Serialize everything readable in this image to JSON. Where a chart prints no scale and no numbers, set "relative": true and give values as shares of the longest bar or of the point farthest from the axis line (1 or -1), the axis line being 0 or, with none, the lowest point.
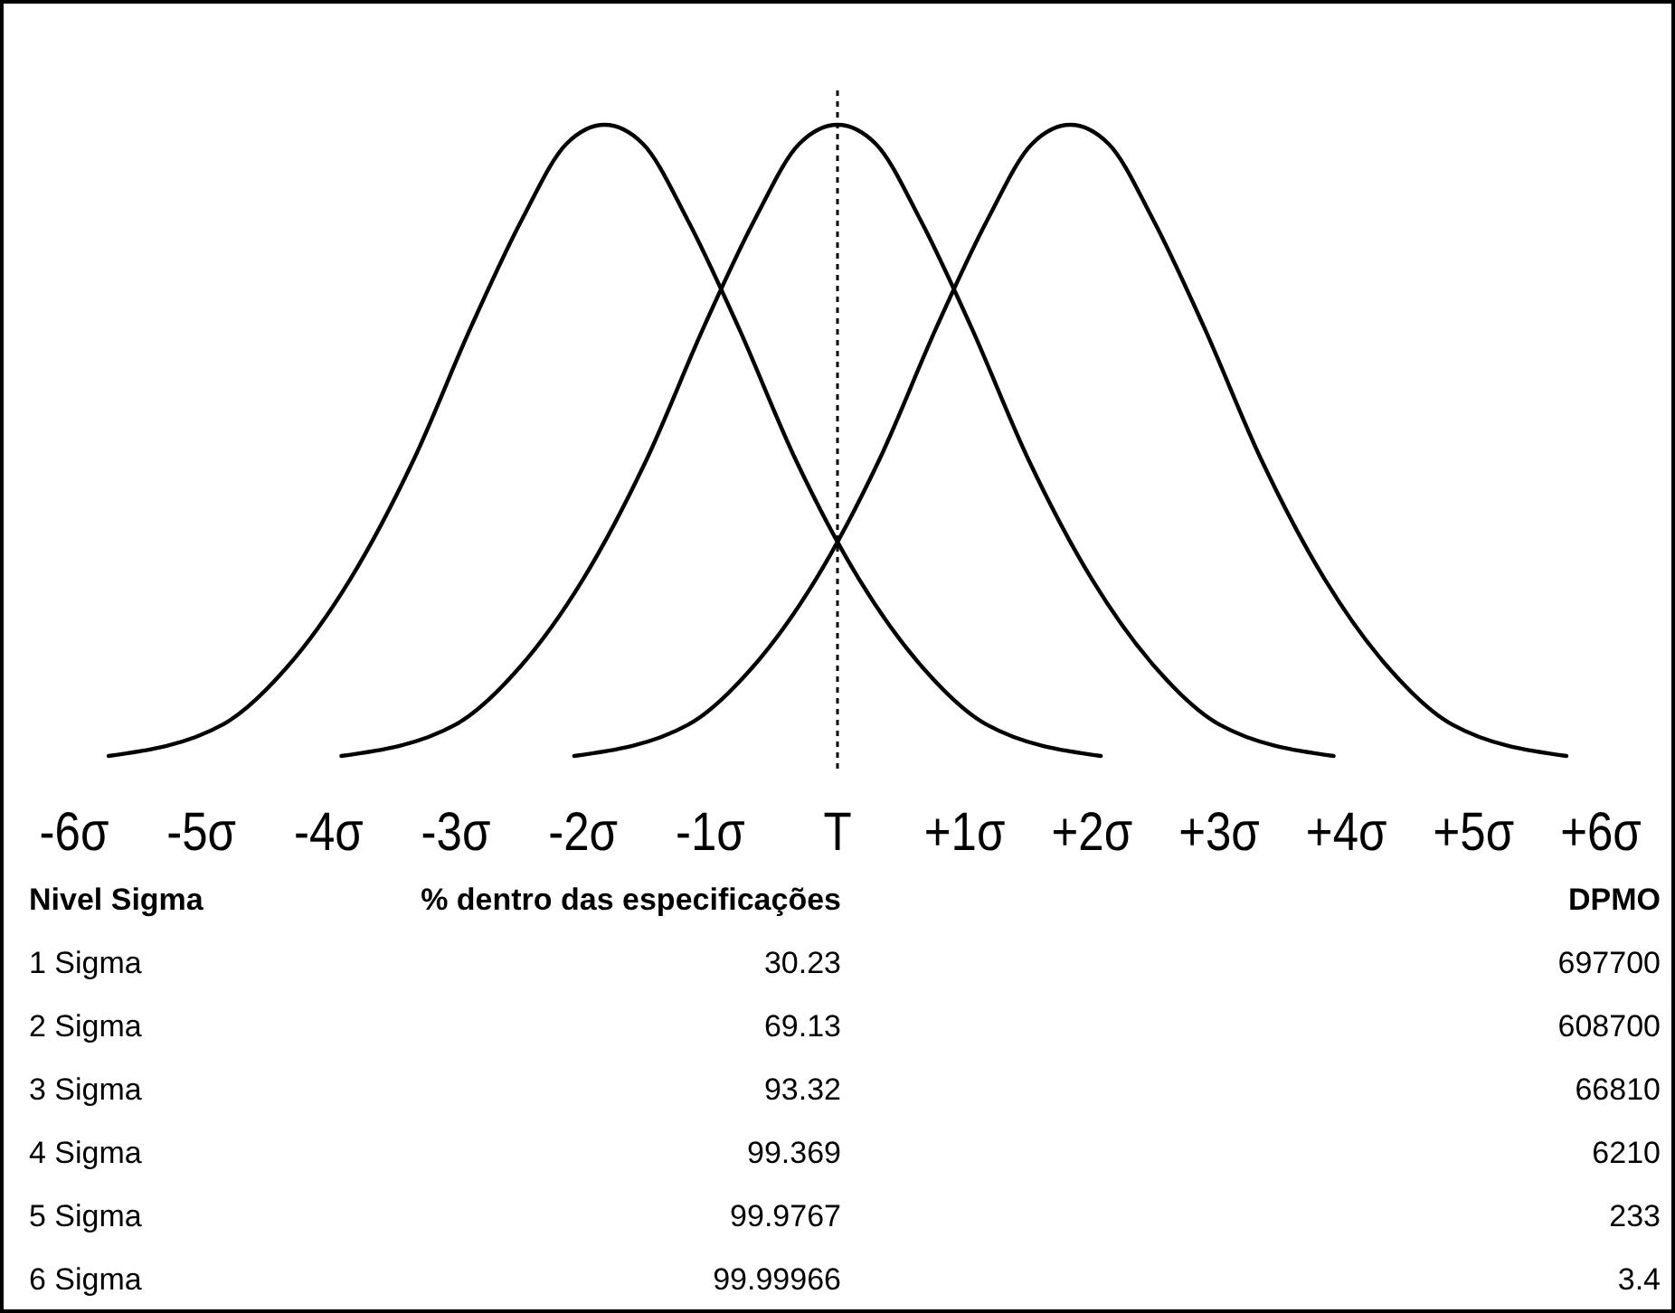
{
  "chart_data": {
    "type": "line",
    "relative": true,
    "marker": "none",
    "line_style": "solid",
    "xlim": [
      -6,
      6
    ],
    "xticks": [
      {
        "value": -6,
        "label": "-6σ"
      },
      {
        "value": -5,
        "label": "-5σ"
      },
      {
        "value": -4,
        "label": "-4σ"
      },
      {
        "value": -3,
        "label": "-3σ"
      },
      {
        "value": -2,
        "label": "-2σ"
      },
      {
        "value": -1,
        "label": "-1σ"
      },
      {
        "value": 0,
        "label": "T"
      },
      {
        "value": 1,
        "label": "+1σ"
      },
      {
        "value": 2,
        "label": "+2σ"
      },
      {
        "value": 3,
        "label": "+3σ"
      },
      {
        "value": 4,
        "label": "+4σ"
      },
      {
        "value": 5,
        "label": "+5σ"
      },
      {
        "value": 6,
        "label": "+6σ"
      }
    ],
    "series": [
      {
        "color": "#000000",
        "x": [
          -5.73,
          -4.83,
          -4.33,
          -3.83,
          -3.33,
          -2.88,
          -2.48,
          -2.13,
          -1.83,
          -1.53,
          -1.18,
          -0.78,
          -0.33,
          0.17,
          0.67,
          1.17,
          2.07
        ],
        "values": [
          0,
          0.05,
          0.14,
          0.28,
          0.47,
          0.68,
          0.85,
          0.97,
          1,
          0.97,
          0.85,
          0.68,
          0.47,
          0.28,
          0.14,
          0.05,
          0
        ]
      },
      {
        "color": "#000000",
        "x": [
          -3.9,
          -3,
          -2.5,
          -2,
          -1.5,
          -1.05,
          -0.65,
          -0.3,
          0,
          0.3,
          0.65,
          1.05,
          1.5,
          2,
          2.5,
          3,
          3.9
        ],
        "values": [
          0,
          0.05,
          0.14,
          0.28,
          0.47,
          0.68,
          0.85,
          0.97,
          1,
          0.97,
          0.85,
          0.68,
          0.47,
          0.28,
          0.14,
          0.05,
          0
        ]
      },
      {
        "color": "#000000",
        "x": [
          -2.07,
          -1.17,
          -0.67,
          -0.17,
          0.33,
          0.78,
          1.18,
          1.53,
          1.83,
          2.13,
          2.48,
          2.88,
          3.33,
          3.83,
          4.33,
          4.83,
          5.73
        ],
        "values": [
          0,
          0.05,
          0.14,
          0.28,
          0.47,
          0.68,
          0.85,
          0.97,
          1,
          0.97,
          0.85,
          0.68,
          0.47,
          0.28,
          0.14,
          0.05,
          0
        ]
      }
    ],
    "ref_lines": [
      {
        "axis": "x",
        "value": 0,
        "color": "#000000",
        "line_style": "dotted"
      }
    ],
    "annotations": [
      "Nivel Sigma",
      "% dentro das especificações",
      "DPMO",
      "1 Sigma",
      "30.23",
      "697700",
      "2 Sigma",
      "69.13",
      "608700",
      "3 Sigma",
      "93.32",
      "66810",
      "4 Sigma",
      "99.369",
      "6210",
      "5 Sigma",
      "99.9767",
      "233",
      "6 Sigma",
      "99.99966",
      "3.4"
    ]
  }
}
